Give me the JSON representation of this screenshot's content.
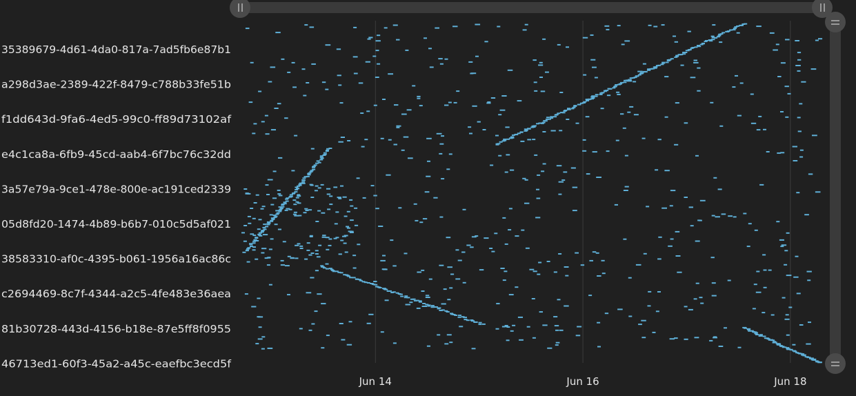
{
  "colors": {
    "background": "#202020",
    "mark": "#5fb0d8",
    "gridline": "#3c3c3c",
    "scrollbar_track": "#3a3a3a",
    "scrollbar_handle": "#4a4a4a",
    "text": "#e6e6e6"
  },
  "icons": {
    "horizontal_handle": "vertical-grip-icon",
    "vertical_handle": "horizontal-grip-icon"
  },
  "chart_data": {
    "type": "scatter",
    "title": "",
    "xlabel": "",
    "ylabel": "",
    "x_axis": {
      "kind": "time",
      "ticks": [
        "Jun 14",
        "Jun 16",
        "Jun 18"
      ]
    },
    "categories": [
      "35389679-4d61-4da0-817a-7ad5fb6e87b1",
      "a298d3ae-2389-422f-8479-c788b33fe51b",
      "f1dd643d-9fa6-4ed5-99c0-ff89d73102af",
      "e4c1ca8a-6fb9-45cd-aab4-6f7bc76c32dd",
      "3a57e79a-9ce1-478e-800e-ac191ced2339",
      "05d8fd20-1474-4b89-b6b7-010c5d5af021",
      "38583310-af0c-4395-b061-1956a16ac86c",
      "c2694469-8c7f-4344-a2c5-4fe483e36aea",
      "81b30728-443d-4156-b18e-87e5ff8f0955",
      "46713ed1-60f3-45a2-a45c-eaefbc3ecd5f"
    ],
    "visible_range": {
      "x": [
        "2023-06-12T17:00",
        "2023-06-18T08:00"
      ],
      "rows_approx": [
        0,
        490
      ]
    },
    "series": [
      {
        "kind": "diagonal-cluster",
        "x_start": "2023-06-15T03:30",
        "x_end": "2023-06-17T13:00",
        "row_start": 175,
        "row_end": 0,
        "count": 150,
        "width_minutes": 40
      },
      {
        "kind": "diagonal-cluster",
        "x_start": "2023-06-13T13:00",
        "x_end": "2023-06-12T17:30",
        "row_start": 180,
        "row_end": 330,
        "count": 90,
        "width_minutes": 35
      },
      {
        "kind": "diagonal-cluster",
        "x_start": "2023-06-13T11:00",
        "x_end": "2023-06-15T00:30",
        "row_start": 350,
        "row_end": 435,
        "count": 80,
        "width_minutes": 40
      },
      {
        "kind": "diagonal-cluster",
        "x_start": "2023-06-17T13:00",
        "x_end": "2023-06-18T07:30",
        "row_start": 440,
        "row_end": 493,
        "count": 60,
        "width_minutes": 45
      },
      {
        "kind": "scattered",
        "x_start": "2023-06-12T17:00",
        "x_end": "2023-06-18T07:00",
        "row_start": 0,
        "row_end": 470,
        "count": 560,
        "width_minutes": 50
      },
      {
        "kind": "scattered",
        "x_start": "2023-06-12T17:00",
        "x_end": "2023-06-13T20:00",
        "row_start": 230,
        "row_end": 350,
        "count": 120,
        "width_minutes": 40
      }
    ]
  }
}
